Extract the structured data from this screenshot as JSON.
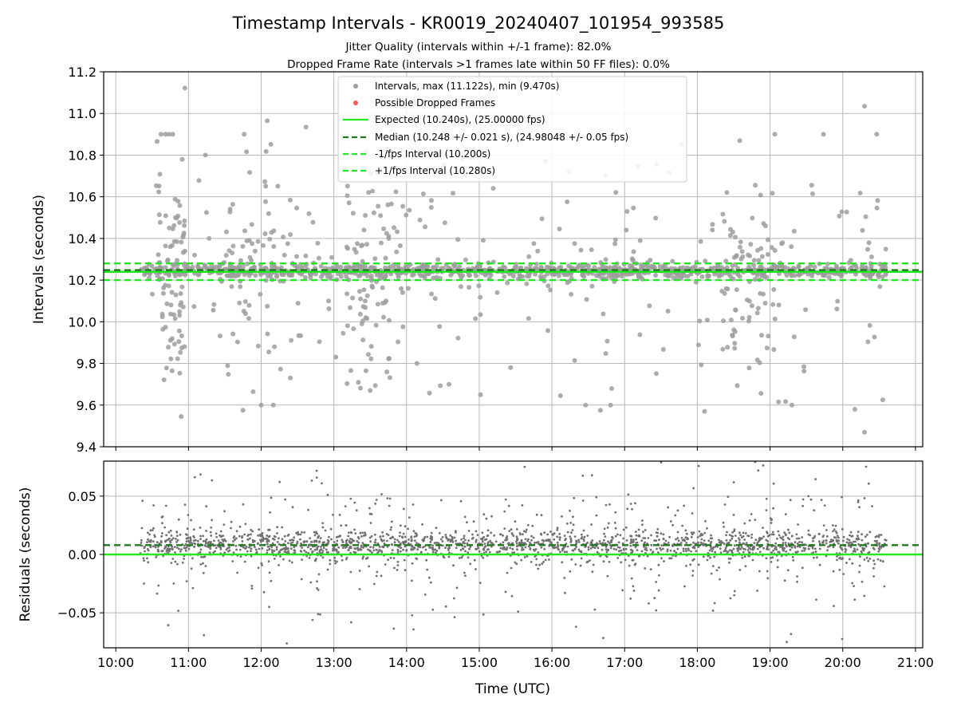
{
  "figure": {
    "title": "Timestamp Intervals - KR0019_20240407_101954_993585",
    "subtitle_1": "Jitter Quality (intervals within +/-1 frame): 82.0%",
    "subtitle_2": "Dropped Frame Rate (intervals >1 frames late within 50 FF files): 0.0%"
  },
  "colors": {
    "intervals": "#9e9e9e",
    "dropped": "#ff5555",
    "expected": "#22e822",
    "median": "#1f7a1f",
    "fps_bounds": "#22e822",
    "residuals": "#707070",
    "grid": "#b8b8b8"
  },
  "chart_data": [
    {
      "type": "scatter",
      "panel": "top",
      "title": "",
      "xlabel": "",
      "ylabel": "Intervals (seconds)",
      "xlim": [
        "09:50",
        "21:06"
      ],
      "ylim": [
        9.4,
        11.2
      ],
      "yticks": [
        9.4,
        9.6,
        9.8,
        10.0,
        10.2,
        10.4,
        10.6,
        10.8,
        11.0,
        11.2
      ],
      "ytick_labels": [
        "9.4",
        "9.6",
        "9.8",
        "10.0",
        "10.2",
        "10.4",
        "10.6",
        "10.8",
        "11.0",
        "11.2"
      ],
      "x_start": "10:20",
      "x_end": "20:36",
      "grid": true,
      "legend": {
        "placement": "upper-center",
        "entries": [
          "Intervals, max (11.122s), min (9.470s)",
          "Possible Dropped Frames",
          "Expected (10.240s), (25.00000 fps)",
          "Median (10.248 +/- 0.021 s), (24.98048 +/- 0.05 fps)",
          "-1/fps Interval (10.200s)",
          "+1/fps Interval (10.280s)"
        ]
      },
      "reference_lines": {
        "expected": 10.24,
        "median": 10.248,
        "minus_one_fps": 10.2,
        "plus_one_fps": 10.28
      },
      "series": [
        {
          "name": "Intervals, max (11.122s), min (9.470s)",
          "max": 11.122,
          "min": 9.47,
          "outliers": [
            [
              "10:57",
              11.122
            ],
            [
              "20:18",
              11.035
            ],
            [
              "12:05",
              10.965
            ],
            [
              "12:37",
              10.935
            ],
            [
              "11:46",
              10.9
            ],
            [
              "17:47",
              10.85
            ],
            [
              "10:54",
              9.545
            ],
            [
              "20:18",
              9.47
            ],
            [
              "18:06",
              9.57
            ],
            [
              "16:40",
              9.575
            ],
            [
              "11:45",
              9.575
            ],
            [
              "12:00",
              9.6
            ],
            [
              "20:10",
              9.58
            ],
            [
              "19:07",
              9.615
            ],
            [
              "15:01",
              9.65
            ],
            [
              "16:07",
              9.645
            ],
            [
              "14:35",
              9.7
            ],
            [
              "13:30",
              9.67
            ],
            [
              "20:28",
              10.9
            ],
            [
              "18:35",
              10.87
            ],
            [
              "20:33",
              9.625
            ],
            [
              "11:14",
              10.8
            ],
            [
              "15:55",
              10.77
            ],
            [
              "17:11",
              10.745
            ]
          ],
          "cluster": {
            "center": 10.245,
            "spread": 0.03,
            "count": 900
          },
          "scatter_count": 520,
          "scatter_range": [
            9.6,
            10.9
          ]
        },
        {
          "name": "Possible Dropped Frames",
          "values": []
        }
      ]
    },
    {
      "type": "scatter",
      "panel": "bottom",
      "title": "",
      "xlabel": "Time (UTC)",
      "ylabel": "Residuals (seconds)",
      "xlim": [
        "09:50",
        "21:06"
      ],
      "ylim": [
        -0.08,
        0.08
      ],
      "yticks": [
        -0.05,
        0.0,
        0.05
      ],
      "ytick_labels": [
        "−0.05",
        "0.00",
        "0.05"
      ],
      "xticks": [
        "10:00",
        "11:00",
        "12:00",
        "13:00",
        "14:00",
        "15:00",
        "16:00",
        "17:00",
        "18:00",
        "19:00",
        "20:00",
        "21:00"
      ],
      "grid": true,
      "reference_lines": {
        "zero": 0.0,
        "median_residual": 0.008
      },
      "series": [
        {
          "name": "Residuals",
          "cluster_center": 0.008,
          "cluster_spread": 0.006,
          "count": 2100,
          "range": [
            -0.08,
            0.08
          ]
        }
      ]
    }
  ]
}
